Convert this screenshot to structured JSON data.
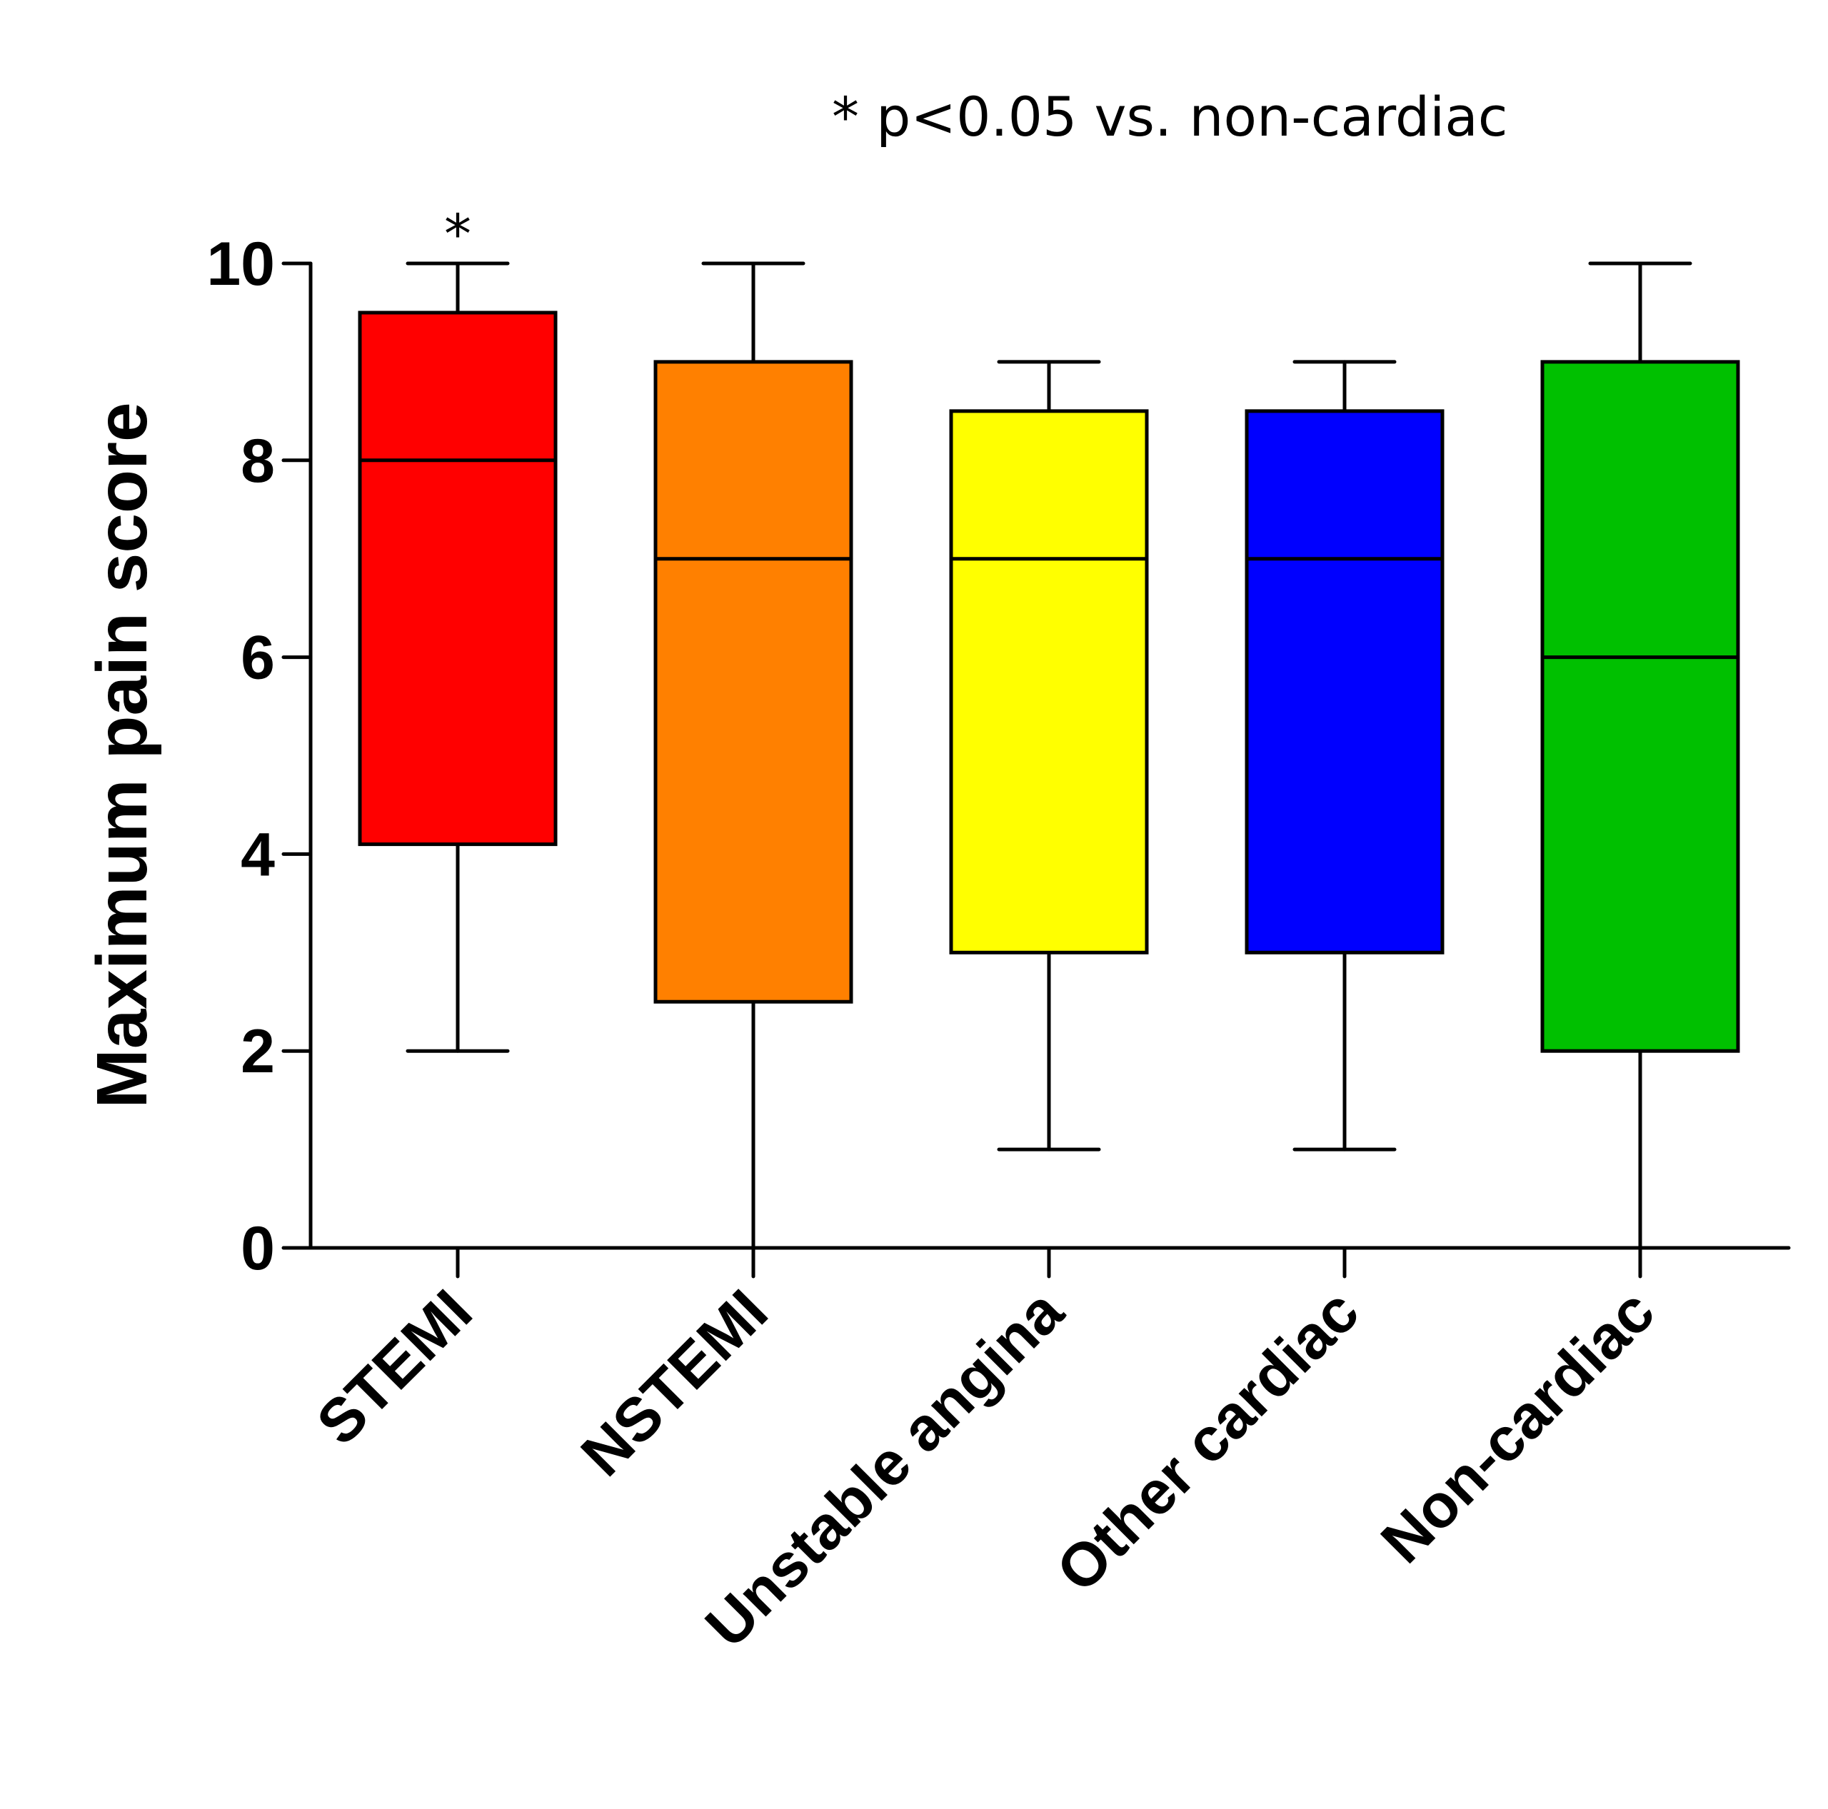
{
  "chart_data": {
    "type": "boxplot",
    "title": "",
    "annotation": "* p<0.05 vs. non-cardiac",
    "xlabel": "",
    "ylabel": "Maximum pain score",
    "ylim": [
      0,
      10
    ],
    "yticks": [
      "0",
      "2",
      "4",
      "6",
      "8",
      "10"
    ],
    "grid": false,
    "categories": [
      "STEMI",
      "NSTEMI",
      "Unstable angina",
      "Other cardiac",
      "Non-cardiac"
    ],
    "boxes": [
      {
        "category": "STEMI",
        "min": 2,
        "q1": 4.1,
        "median": 8,
        "q3": 9.5,
        "max": 10,
        "color": "#ff0000",
        "marker": "*"
      },
      {
        "category": "NSTEMI",
        "min": 0,
        "q1": 2.5,
        "median": 7,
        "q3": 9,
        "max": 10,
        "color": "#ff8000",
        "marker": ""
      },
      {
        "category": "Unstable angina",
        "min": 1,
        "q1": 3,
        "median": 7,
        "q3": 8.5,
        "max": 9,
        "color": "#ffff00",
        "marker": ""
      },
      {
        "category": "Other cardiac",
        "min": 1,
        "q1": 3,
        "median": 7,
        "q3": 8.5,
        "max": 9,
        "color": "#0000ff",
        "marker": ""
      },
      {
        "category": "Non-cardiac",
        "min": 0,
        "q1": 2,
        "median": 6,
        "q3": 9,
        "max": 10,
        "color": "#00c000",
        "marker": ""
      }
    ]
  }
}
